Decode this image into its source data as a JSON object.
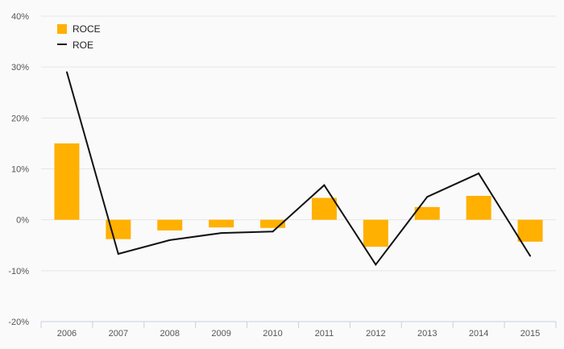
{
  "chart_data": {
    "type": "bar",
    "categories": [
      "2006",
      "2007",
      "2008",
      "2009",
      "2010",
      "2011",
      "2012",
      "2013",
      "2014",
      "2015"
    ],
    "series": [
      {
        "name": "ROCE",
        "kind": "bar",
        "color": "#ffb000",
        "values": [
          15.0,
          -3.8,
          -2.1,
          -1.5,
          -1.6,
          4.3,
          -5.3,
          2.5,
          4.7,
          -4.3
        ]
      },
      {
        "name": "ROE",
        "kind": "line",
        "color": "#111111",
        "values": [
          29.0,
          -6.7,
          -4.0,
          -2.6,
          -2.3,
          6.8,
          -8.8,
          4.5,
          9.1,
          -7.1
        ]
      }
    ],
    "title": "",
    "xlabel": "",
    "ylabel": "",
    "ylim": [
      -20,
      40
    ],
    "yticks": [
      {
        "value": -20,
        "label": "-20%"
      },
      {
        "value": -10,
        "label": "-10%"
      },
      {
        "value": 0,
        "label": "0%"
      },
      {
        "value": 10,
        "label": "10%"
      },
      {
        "value": 20,
        "label": "20%"
      },
      {
        "value": 30,
        "label": "30%"
      },
      {
        "value": 40,
        "label": "40%"
      }
    ],
    "grid": true,
    "legend_position": "top-left"
  },
  "colors": {
    "background": "#fafafa",
    "grid": "#e6e6e6",
    "axis": "#c8d0e0",
    "roce": "#ffb000",
    "roe": "#111111"
  }
}
